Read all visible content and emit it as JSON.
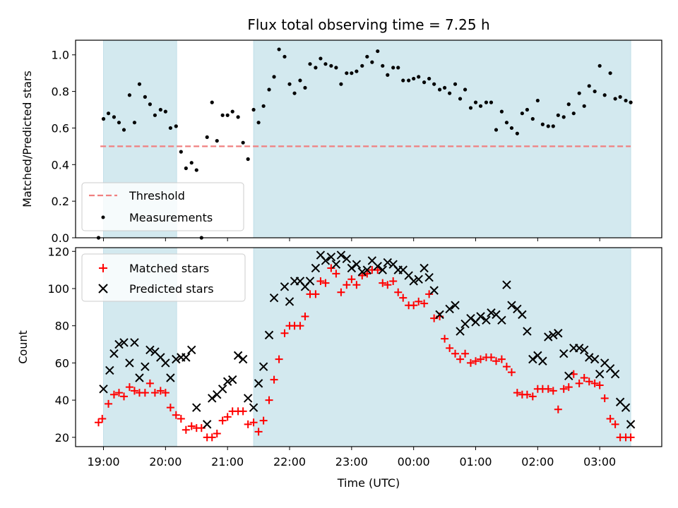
{
  "chart_data": [
    {
      "type": "scatter",
      "title": "Flux total observing time = 7.25 h",
      "ylabel": "Matched/Predicted stars",
      "xlabel": "",
      "xlim": [
        18.55,
        28.0
      ],
      "ylim": [
        0.0,
        1.08
      ],
      "yticks": [
        0.0,
        0.2,
        0.4,
        0.6,
        0.8,
        1.0
      ],
      "ytick_labels": [
        "0.0",
        "0.2",
        "0.4",
        "0.6",
        "0.8",
        "1.0"
      ],
      "shaded_intervals": [
        [
          19.0,
          20.18
        ],
        [
          21.42,
          27.5
        ]
      ],
      "shade_color": "#d3e9ef",
      "legend": {
        "placement": "lower-left",
        "entries": [
          "Threshold",
          "Measurements"
        ]
      },
      "series": [
        {
          "name": "Threshold",
          "kind": "line",
          "style": "dashed",
          "color": "#f08080",
          "x": [
            18.95,
            27.5
          ],
          "values": [
            0.5,
            0.5
          ]
        },
        {
          "name": "Measurements",
          "kind": "scatter",
          "color": "#000000",
          "x": [
            18.92,
            19.0,
            19.08,
            19.17,
            19.25,
            19.33,
            19.42,
            19.5,
            19.58,
            19.67,
            19.75,
            19.83,
            19.92,
            20.0,
            20.08,
            20.17,
            20.25,
            20.33,
            20.42,
            20.5,
            20.58,
            20.67,
            20.75,
            20.83,
            20.92,
            21.0,
            21.08,
            21.17,
            21.25,
            21.33,
            21.42,
            21.5,
            21.58,
            21.67,
            21.75,
            21.83,
            21.92,
            22.0,
            22.08,
            22.17,
            22.25,
            22.33,
            22.42,
            22.5,
            22.58,
            22.67,
            22.75,
            22.83,
            22.92,
            23.0,
            23.08,
            23.17,
            23.25,
            23.33,
            23.42,
            23.5,
            23.58,
            23.67,
            23.75,
            23.83,
            23.92,
            24.0,
            24.08,
            24.17,
            24.25,
            24.33,
            24.42,
            24.5,
            24.58,
            24.67,
            24.75,
            24.83,
            24.92,
            25.0,
            25.08,
            25.17,
            25.25,
            25.33,
            25.42,
            25.5,
            25.58,
            25.67,
            25.75,
            25.83,
            25.92,
            26.0,
            26.08,
            26.17,
            26.25,
            26.33,
            26.42,
            26.5,
            26.58,
            26.67,
            26.75,
            26.83,
            26.92,
            27.0,
            27.08,
            27.17,
            27.25,
            27.33,
            27.42,
            27.5
          ],
          "values": [
            0.0,
            0.65,
            0.68,
            0.66,
            0.63,
            0.59,
            0.78,
            0.63,
            0.84,
            0.77,
            0.73,
            0.67,
            0.7,
            0.69,
            0.6,
            0.61,
            0.47,
            0.38,
            0.41,
            0.37,
            0.0,
            0.55,
            0.74,
            0.53,
            0.67,
            0.67,
            0.69,
            0.66,
            0.52,
            0.43,
            0.7,
            0.63,
            0.72,
            0.81,
            0.88,
            1.03,
            0.99,
            0.84,
            0.79,
            0.86,
            0.82,
            0.95,
            0.93,
            0.98,
            0.95,
            0.94,
            0.93,
            0.84,
            0.9,
            0.9,
            0.91,
            0.94,
            0.99,
            0.96,
            1.02,
            0.94,
            0.89,
            0.93,
            0.93,
            0.86,
            0.86,
            0.87,
            0.88,
            0.85,
            0.87,
            0.84,
            0.81,
            0.82,
            0.79,
            0.84,
            0.76,
            0.81,
            0.71,
            0.74,
            0.72,
            0.74,
            0.74,
            0.59,
            0.69,
            0.63,
            0.6,
            0.57,
            0.68,
            0.7,
            0.65,
            0.75,
            0.62,
            0.61,
            0.61,
            0.67,
            0.66,
            0.73,
            0.68,
            0.79,
            0.72,
            0.83,
            0.8,
            0.94,
            0.78,
            0.9,
            0.76,
            0.77,
            0.75,
            0.74
          ]
        }
      ]
    },
    {
      "type": "scatter",
      "title": "",
      "ylabel": "Count",
      "xlabel": "Time (UTC)",
      "xlim": [
        18.55,
        28.0
      ],
      "ylim": [
        15,
        122
      ],
      "yticks": [
        20,
        40,
        60,
        80,
        100,
        120
      ],
      "ytick_labels": [
        "20",
        "40",
        "60",
        "80",
        "100",
        "120"
      ],
      "xticks": [
        19,
        20,
        21,
        22,
        23,
        24,
        25,
        26,
        27
      ],
      "xtick_labels": [
        "19:00",
        "20:00",
        "21:00",
        "22:00",
        "23:00",
        "00:00",
        "01:00",
        "02:00",
        "03:00"
      ],
      "shaded_intervals": [
        [
          19.0,
          20.18
        ],
        [
          21.42,
          27.5
        ]
      ],
      "shade_color": "#d3e9ef",
      "legend": {
        "placement": "top-left",
        "entries": [
          "Matched stars",
          "Predicted stars"
        ]
      },
      "series": [
        {
          "name": "Matched stars",
          "marker": "plus",
          "color": "#ff0000",
          "x": [
            18.92,
            18.98,
            19.08,
            19.17,
            19.25,
            19.33,
            19.42,
            19.5,
            19.58,
            19.67,
            19.75,
            19.83,
            19.92,
            20.0,
            20.08,
            20.17,
            20.25,
            20.33,
            20.42,
            20.5,
            20.58,
            20.67,
            20.75,
            20.83,
            20.92,
            21.0,
            21.08,
            21.17,
            21.25,
            21.33,
            21.42,
            21.5,
            21.58,
            21.67,
            21.75,
            21.83,
            21.92,
            22.0,
            22.08,
            22.17,
            22.25,
            22.33,
            22.42,
            22.5,
            22.58,
            22.67,
            22.75,
            22.83,
            22.92,
            23.0,
            23.08,
            23.17,
            23.25,
            23.33,
            23.42,
            23.5,
            23.58,
            23.67,
            23.75,
            23.83,
            23.92,
            24.0,
            24.08,
            24.17,
            24.25,
            24.33,
            24.42,
            24.5,
            24.58,
            24.67,
            24.75,
            24.83,
            24.92,
            25.0,
            25.08,
            25.17,
            25.25,
            25.33,
            25.42,
            25.5,
            25.58,
            25.67,
            25.75,
            25.83,
            25.92,
            26.0,
            26.08,
            26.17,
            26.25,
            26.33,
            26.42,
            26.5,
            26.58,
            26.67,
            26.75,
            26.83,
            26.92,
            27.0,
            27.08,
            27.17,
            27.25,
            27.33,
            27.42,
            27.5
          ],
          "values": [
            28,
            30,
            38,
            43,
            44,
            42,
            47,
            45,
            44,
            44,
            49,
            44,
            45,
            44,
            36,
            32,
            30,
            24,
            26,
            25,
            25,
            20,
            20,
            22,
            29,
            31,
            34,
            34,
            34,
            27,
            28,
            23,
            29,
            40,
            51,
            62,
            76,
            80,
            80,
            80,
            85,
            97,
            97,
            104,
            103,
            111,
            108,
            98,
            102,
            105,
            102,
            107,
            108,
            110,
            110,
            103,
            102,
            104,
            98,
            95,
            91,
            91,
            93,
            92,
            97,
            84,
            85,
            73,
            68,
            65,
            62,
            65,
            60,
            61,
            62,
            63,
            63,
            61,
            62,
            58,
            55,
            44,
            43,
            43,
            42,
            46,
            46,
            46,
            45,
            35,
            46,
            47,
            54,
            49,
            52,
            50,
            49,
            48,
            41,
            30,
            27,
            20,
            20,
            20
          ]
        },
        {
          "name": "Predicted stars",
          "marker": "x",
          "color": "#000000",
          "x": [
            19.0,
            19.1,
            19.17,
            19.25,
            19.33,
            19.42,
            19.5,
            19.58,
            19.67,
            19.75,
            19.83,
            19.92,
            20.0,
            20.08,
            20.17,
            20.25,
            20.33,
            20.42,
            20.5,
            20.67,
            20.75,
            20.83,
            20.92,
            21.0,
            21.08,
            21.17,
            21.25,
            21.33,
            21.42,
            21.5,
            21.58,
            21.67,
            21.75,
            21.92,
            22.0,
            22.08,
            22.17,
            22.25,
            22.33,
            22.42,
            22.5,
            22.58,
            22.67,
            22.75,
            22.83,
            22.92,
            23.0,
            23.08,
            23.17,
            23.25,
            23.33,
            23.42,
            23.5,
            23.58,
            23.67,
            23.75,
            23.83,
            23.92,
            24.0,
            24.08,
            24.17,
            24.25,
            24.33,
            24.42,
            24.58,
            24.67,
            24.75,
            24.83,
            24.92,
            25.0,
            25.08,
            25.17,
            25.25,
            25.33,
            25.42,
            25.5,
            25.58,
            25.67,
            25.75,
            25.83,
            25.92,
            26.0,
            26.08,
            26.17,
            26.25,
            26.33,
            26.42,
            26.5,
            26.58,
            26.67,
            26.75,
            26.83,
            26.92,
            27.0,
            27.08,
            27.17,
            27.25,
            27.33,
            27.42,
            27.5
          ],
          "values": [
            46,
            56,
            65,
            70,
            71,
            60,
            71,
            52,
            58,
            67,
            66,
            63,
            60,
            52,
            62,
            63,
            63,
            67,
            36,
            27,
            41,
            43,
            46,
            50,
            51,
            64,
            62,
            41,
            36,
            49,
            58,
            75,
            95,
            101,
            93,
            104,
            104,
            101,
            104,
            111,
            118,
            115,
            117,
            113,
            118,
            116,
            111,
            113,
            109,
            110,
            115,
            112,
            110,
            114,
            113,
            110,
            110,
            107,
            104,
            105,
            111,
            106,
            99,
            86,
            89,
            91,
            77,
            81,
            84,
            82,
            85,
            83,
            87,
            86,
            83,
            102,
            91,
            89,
            86,
            77,
            62,
            64,
            61,
            74,
            75,
            76,
            65,
            53,
            68,
            68,
            67,
            63,
            62,
            54,
            60,
            57,
            54,
            39,
            36,
            27
          ]
        }
      ]
    }
  ]
}
